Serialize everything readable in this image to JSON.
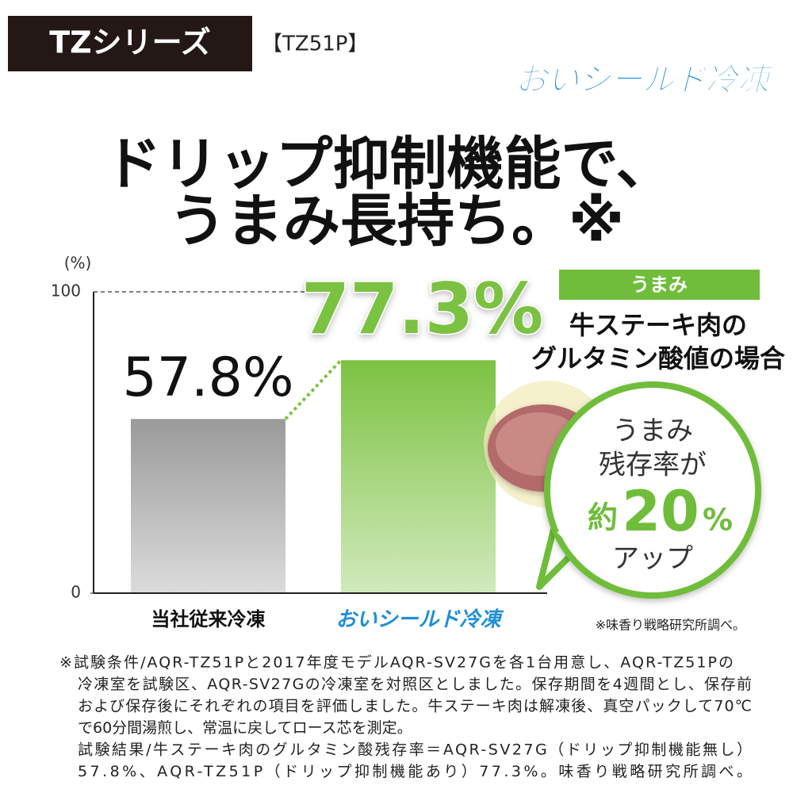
{
  "header": {
    "series": "TZシリーズ",
    "model": "【TZ51P】",
    "logo": "おいシールド冷凍"
  },
  "headline": [
    "ドリップ抑制機能で、",
    "うまみ長持ち。※"
  ],
  "chart_data": {
    "type": "bar",
    "y_label": "(%)",
    "categories": [
      "当社従来冷凍",
      "おいシールド冷凍"
    ],
    "values": [
      57.8,
      77.3
    ],
    "value_labels": [
      "57.8%",
      "77.3%"
    ],
    "colors": [
      "#9a9a9a",
      "#7cc242"
    ],
    "ylim": [
      0,
      100
    ],
    "yticks": [
      0,
      100
    ]
  },
  "panel": {
    "tag": "うまみ",
    "lines": [
      "牛ステーキ肉の",
      "グルタミン酸値の場合"
    ]
  },
  "bubble": {
    "line1": "うまみ",
    "line2": "残存率が",
    "approx": "約",
    "number": "20",
    "unit": "%",
    "line4": "アップ"
  },
  "source": "※味香り戦略研究所調べ。",
  "notes": [
    "※試験条件/AQR-TZ51Pと2017年度モデルAQR-SV27Gを各1台用意し、AQR-TZ51Pの",
    "冷凍室を試験区、AQR-SV27Gの冷凍室を対照区としました。保存期間を4週間とし、保存前",
    "および保存後にそれぞれの項目を評価しました。牛ステーキ肉は解凍後、真空パックして70℃",
    "で60分間湯煎し、常温に戻してロース芯を測定。",
    "試験結果/牛ステーキ肉のグルタミン酸残存率＝AQR-SV27G（ドリップ抑制機能無し）",
    "57.8%、AQR-TZ51P（ドリップ抑制機能あり）77.3%。味香り戦略研究所調べ。"
  ]
}
